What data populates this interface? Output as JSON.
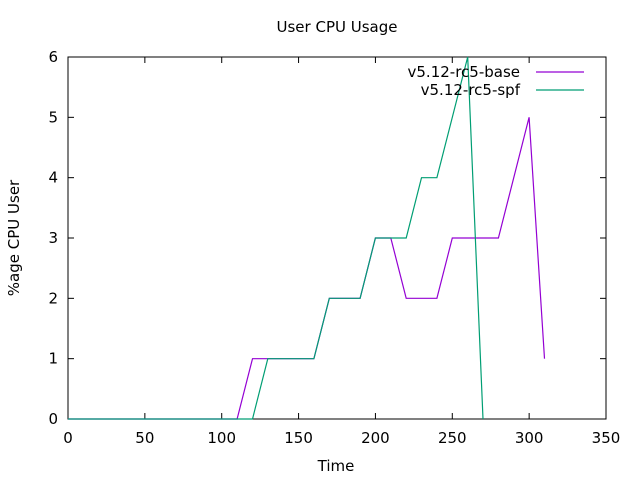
{
  "chart_data": {
    "type": "line",
    "title": "User CPU Usage",
    "xlabel": "Time",
    "ylabel": "%age CPU User",
    "xlim": [
      0,
      350
    ],
    "ylim": [
      0,
      6
    ],
    "xticks": [
      "0",
      "50",
      "100",
      "150",
      "200",
      "250",
      "300",
      "350"
    ],
    "yticks": [
      "0",
      "1",
      "2",
      "3",
      "4",
      "5",
      "6"
    ],
    "grid": false,
    "legend_position": "top-right",
    "series": [
      {
        "name": "v5.12-rc5-base",
        "color": "#9400d3",
        "x": [
          0,
          110,
          120,
          130,
          160,
          170,
          190,
          200,
          210,
          220,
          240,
          250,
          280,
          300,
          310
        ],
        "y": [
          0,
          0,
          1,
          1,
          1,
          2,
          2,
          3,
          3,
          2,
          2,
          3,
          3,
          5,
          1
        ]
      },
      {
        "name": "v5.12-rc5-spf",
        "color": "#009e73",
        "x": [
          0,
          120,
          130,
          160,
          170,
          190,
          200,
          210,
          220,
          230,
          240,
          260,
          270
        ],
        "y": [
          0,
          0,
          1,
          1,
          2,
          2,
          3,
          3,
          3,
          4,
          4,
          6,
          0
        ]
      }
    ]
  }
}
